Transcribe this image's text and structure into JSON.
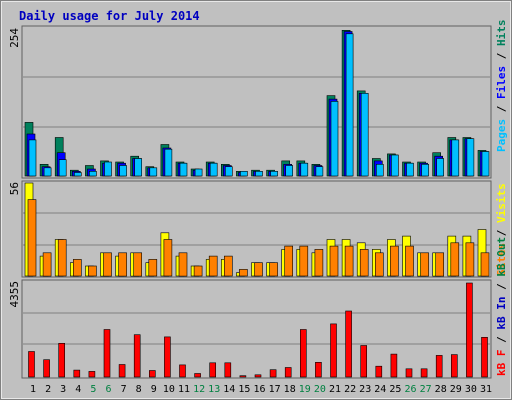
{
  "title": "Daily usage for July 2014",
  "colors": {
    "background": "#c0c0c0",
    "frame": "#808080",
    "gridline": "#808080",
    "title_text": "#0000c0",
    "weekday_label": "#000000",
    "weekend_label": "#008040",
    "hits": "#00805c",
    "files": "#0000ff",
    "pages": "#00c0ff",
    "visits": "#ffff00",
    "sites": "#ff8000",
    "kbytes": "#ff0000"
  },
  "chart_data": [
    {
      "type": "bar",
      "title": "Daily usage for July 2014",
      "categories": [
        "1",
        "2",
        "3",
        "4",
        "5",
        "6",
        "7",
        "8",
        "9",
        "10",
        "11",
        "12",
        "13",
        "14",
        "15",
        "16",
        "17",
        "18",
        "19",
        "20",
        "21",
        "22",
        "23",
        "24",
        "25",
        "26",
        "27",
        "28",
        "29",
        "30",
        "31"
      ],
      "weekend_days": [
        "5",
        "6",
        "12",
        "13",
        "19",
        "20",
        "26",
        "27"
      ],
      "ylabel": "Pages / Files / Hits",
      "ylim": [
        0,
        254
      ],
      "ytick_label": "254",
      "series": [
        {
          "name": "Hits",
          "color": "#00805c",
          "values": [
            92,
            20,
            66,
            10,
            18,
            26,
            24,
            34,
            16,
            54,
            24,
            12,
            24,
            20,
            8,
            10,
            10,
            26,
            26,
            20,
            138,
            250,
            146,
            30,
            38,
            24,
            24,
            40,
            66,
            66,
            44
          ]
        },
        {
          "name": "Files",
          "color": "#0000ff",
          "values": [
            72,
            16,
            40,
            8,
            12,
            22,
            22,
            30,
            14,
            48,
            22,
            10,
            22,
            18,
            6,
            8,
            8,
            20,
            22,
            18,
            132,
            248,
            142,
            26,
            36,
            22,
            22,
            34,
            62,
            64,
            42
          ]
        },
        {
          "name": "Pages",
          "color": "#00c0ff",
          "values": [
            62,
            14,
            28,
            6,
            8,
            24,
            18,
            30,
            14,
            46,
            22,
            12,
            22,
            16,
            8,
            8,
            8,
            18,
            22,
            16,
            128,
            244,
            142,
            20,
            36,
            22,
            20,
            30,
            62,
            64,
            42
          ]
        }
      ]
    },
    {
      "type": "bar",
      "categories": [
        "1",
        "2",
        "3",
        "4",
        "5",
        "6",
        "7",
        "8",
        "9",
        "10",
        "11",
        "12",
        "13",
        "14",
        "15",
        "16",
        "17",
        "18",
        "19",
        "20",
        "21",
        "22",
        "23",
        "24",
        "25",
        "26",
        "27",
        "28",
        "29",
        "30",
        "31"
      ],
      "ylabel": "Visits / Sites",
      "ylim": [
        0,
        56
      ],
      "ytick_label": "56",
      "series": [
        {
          "name": "Visits",
          "color": "#ffff00",
          "values": [
            56,
            12,
            22,
            8,
            6,
            14,
            12,
            14,
            8,
            26,
            12,
            6,
            10,
            10,
            2,
            8,
            8,
            16,
            16,
            14,
            22,
            22,
            20,
            16,
            22,
            24,
            14,
            14,
            24,
            24,
            28
          ]
        },
        {
          "name": "Sites",
          "color": "#ff8000",
          "values": [
            46,
            14,
            22,
            10,
            6,
            14,
            14,
            14,
            10,
            22,
            14,
            6,
            12,
            12,
            4,
            8,
            8,
            18,
            18,
            16,
            18,
            18,
            16,
            14,
            18,
            18,
            14,
            14,
            20,
            20,
            14
          ]
        }
      ]
    },
    {
      "type": "bar",
      "categories": [
        "1",
        "2",
        "3",
        "4",
        "5",
        "6",
        "7",
        "8",
        "9",
        "10",
        "11",
        "12",
        "13",
        "14",
        "15",
        "16",
        "17",
        "18",
        "19",
        "20",
        "21",
        "22",
        "23",
        "24",
        "25",
        "26",
        "27",
        "28",
        "29",
        "30",
        "31"
      ],
      "ylabel": "kB F / kB In / kB Out",
      "ylim": [
        0,
        4355
      ],
      "ytick_label": "4355",
      "series": [
        {
          "name": "kB F",
          "color": "#ff0000",
          "values": [
            1180,
            800,
            1560,
            320,
            260,
            2200,
            580,
            1960,
            300,
            1860,
            560,
            160,
            660,
            660,
            60,
            100,
            340,
            440,
            2200,
            680,
            2460,
            3060,
            1460,
            500,
            1060,
            380,
            380,
            1000,
            1040,
            4355,
            1840
          ]
        }
      ]
    }
  ]
}
